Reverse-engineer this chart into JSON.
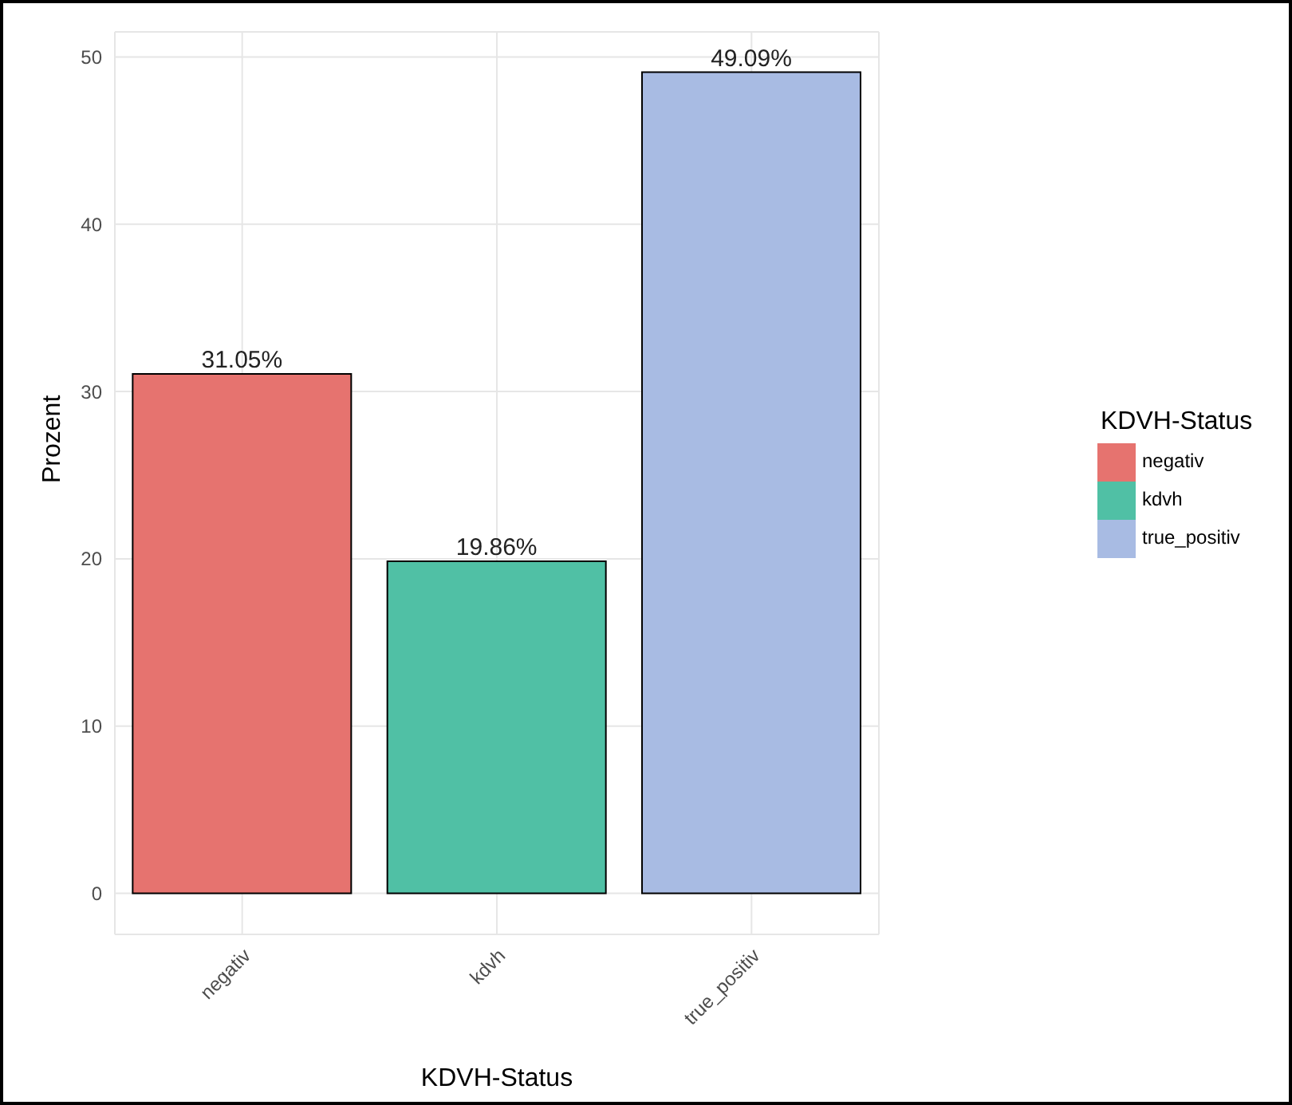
{
  "chart_data": {
    "type": "bar",
    "xlabel": "KDVH-Status",
    "ylabel": "Prozent",
    "legend_title": "KDVH-Status",
    "categories": [
      "negativ",
      "kdvh",
      "true_positiv"
    ],
    "series": [
      {
        "name": "negativ",
        "color": "#e6736f",
        "values": [
          31.05,
          null,
          null
        ],
        "value_labels": [
          "31.05%",
          null,
          null
        ]
      },
      {
        "name": "kdvh",
        "color": "#50c0a5",
        "values": [
          null,
          19.86,
          null
        ],
        "value_labels": [
          null,
          "19.86%",
          null
        ]
      },
      {
        "name": "true_positiv",
        "color": "#a8bbe3",
        "values": [
          null,
          null,
          49.09
        ],
        "value_labels": [
          null,
          null,
          "49.09%"
        ]
      }
    ],
    "stacked": true,
    "ylim": [
      -2.45,
      51.5
    ],
    "yticks": [
      0,
      10,
      20,
      30,
      40,
      50
    ],
    "grid": true,
    "legend": "right"
  }
}
